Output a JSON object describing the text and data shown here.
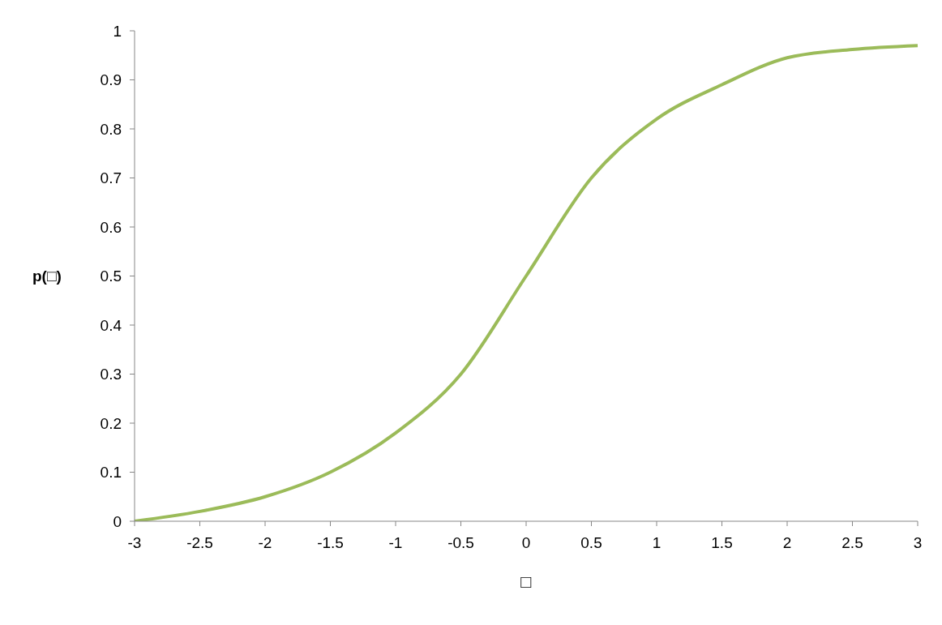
{
  "chart_data": {
    "type": "line",
    "xlabel": "□",
    "ylabel": "p(□)",
    "categories": [
      "-3",
      "-2.5",
      "-2",
      "-1.5",
      "-1",
      "-0.5",
      "0",
      "0.5",
      "1",
      "1.5",
      "2",
      "2.5",
      "3"
    ],
    "series": [
      {
        "color": "#9bbb59",
        "values": [
          0,
          0.02,
          0.05,
          0.1,
          0.18,
          0.3,
          0.5,
          0.7,
          0.82,
          0.89,
          0.945,
          0.962,
          0.97
        ]
      }
    ],
    "ylim": [
      0,
      1
    ],
    "yticks": [
      0,
      0.1,
      0.2,
      0.3,
      0.4,
      0.5,
      0.6,
      0.7,
      0.8,
      0.9,
      1
    ],
    "marker": "none"
  }
}
